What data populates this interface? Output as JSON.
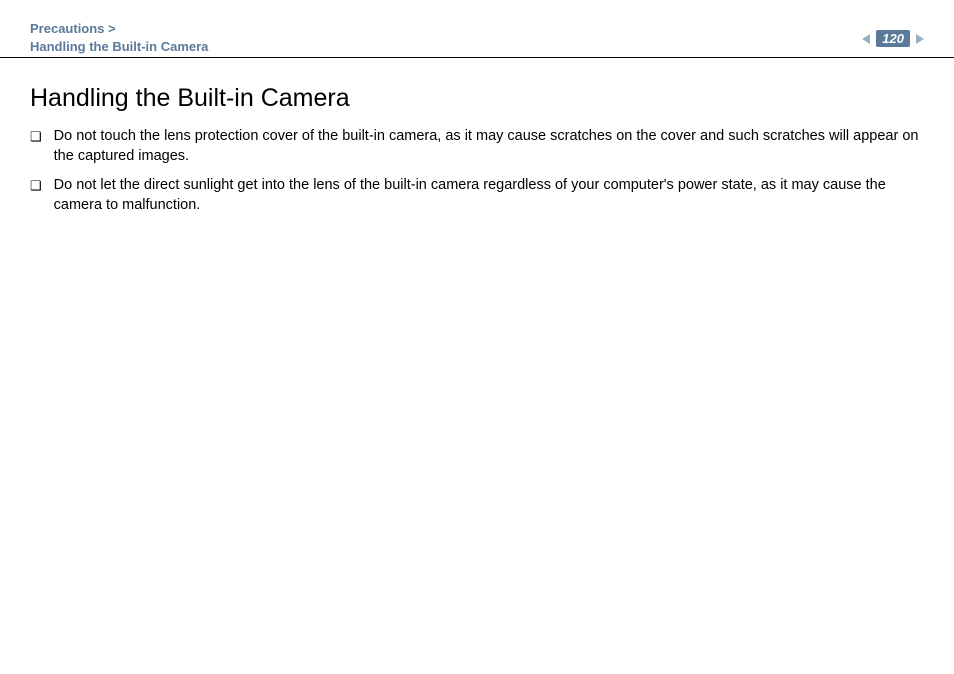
{
  "header": {
    "breadcrumb_line1": "Precautions >",
    "breadcrumb_line2": "Handling the Built-in Camera",
    "page_number": "120"
  },
  "content": {
    "title": "Handling the Built-in Camera",
    "bullets": [
      "Do not touch the lens protection cover of the built-in camera, as it may cause scratches on the cover and such scratches will appear on the captured images.",
      "Do not let the direct sunlight get into the lens of the built-in camera regardless of your computer's power state, as it may cause the camera to malfunction."
    ]
  },
  "colors": {
    "accent": "#5b7a99",
    "accent_light": "#9aaec2",
    "text": "#000000",
    "background": "#ffffff"
  }
}
